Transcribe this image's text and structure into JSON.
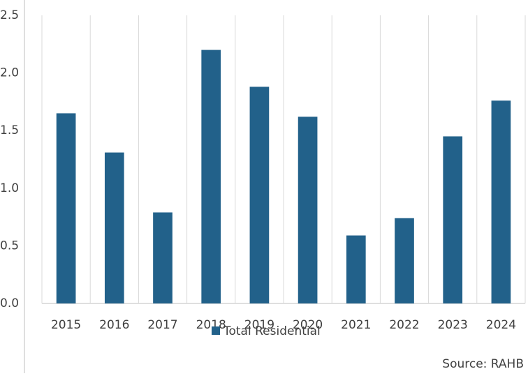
{
  "chart_data": {
    "type": "bar",
    "categories": [
      "2015",
      "2016",
      "2017",
      "2018",
      "2019",
      "2020",
      "2021",
      "2022",
      "2023",
      "2024"
    ],
    "series": [
      {
        "name": "Total Residential",
        "color": "#22618a",
        "values": [
          1.65,
          1.31,
          0.79,
          2.2,
          1.88,
          1.62,
          0.59,
          0.74,
          1.45,
          1.76
        ]
      }
    ],
    "ylim": [
      0,
      2.5
    ],
    "yticks": [
      {
        "value": 0,
        "label": "0.0"
      },
      0.5,
      {
        "value": 1,
        "label": "1.0"
      },
      1.5,
      {
        "value": 2,
        "label": "2.0"
      },
      2.5
    ],
    "grid": true,
    "legend": "bottom",
    "source": "Source: RAHB"
  }
}
